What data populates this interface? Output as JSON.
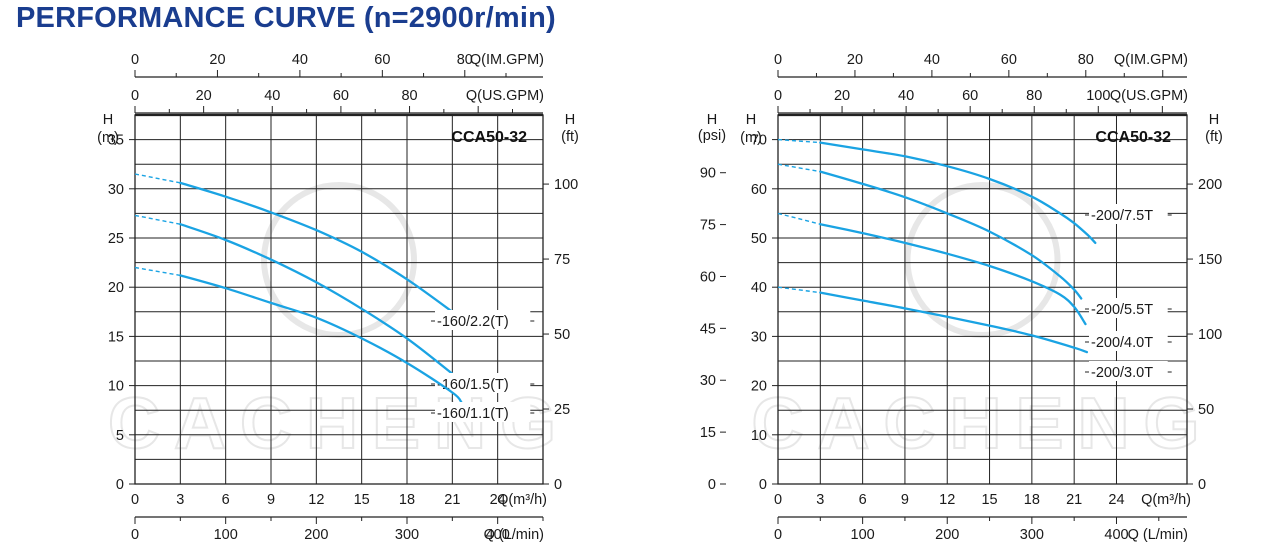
{
  "title": "PERFORMANCE CURVE (n=2900r/min)",
  "colors": {
    "title": "#1a3d8f",
    "curve": "#1aa3e3",
    "grid": "#222222",
    "watermark": "#e7e7e7"
  },
  "watermark_text": "CACHENG",
  "chart_data": [
    {
      "type": "line",
      "model": "CCA50-32",
      "xlabel": "Q(m³/h)",
      "ylabel_left": "H (m)",
      "ylabel_right": "H (ft)",
      "xlim": [
        0,
        27
      ],
      "ylim": [
        0,
        37.5
      ],
      "x_ticks": [
        0,
        3,
        6,
        9,
        12,
        15,
        18,
        21,
        24
      ],
      "y_ticks": [
        0,
        5,
        10,
        15,
        20,
        25,
        30,
        35
      ],
      "right_axis_ticks": [
        0,
        25,
        50,
        75,
        100
      ],
      "right_axis_factor": 0.3048,
      "secondary_axes": [
        {
          "label": "Q(US.GPM)",
          "ticks": [
            0,
            20,
            40,
            60,
            80
          ],
          "factor": 0.2271
        },
        {
          "label": "Q(IM.GPM)",
          "ticks": [
            0,
            20,
            40,
            60,
            80
          ],
          "factor": 0.2728
        },
        {
          "label": "Q (L/min)",
          "ticks": [
            0,
            100,
            200,
            300,
            400
          ],
          "factor": 0.06
        }
      ],
      "grid": true,
      "series": [
        {
          "name": "-160/2.2(T)",
          "x": [
            0,
            3,
            6,
            9,
            12,
            15,
            18,
            21,
            21.6
          ],
          "y": [
            31.5,
            30.6,
            29.2,
            27.6,
            25.8,
            23.6,
            20.8,
            17.5,
            16.8
          ]
        },
        {
          "name": "-160/1.5(T)",
          "x": [
            0,
            3,
            6,
            9,
            12,
            15,
            18,
            21,
            21.9
          ],
          "y": [
            27.3,
            26.4,
            24.8,
            22.8,
            20.5,
            17.8,
            14.8,
            11.2,
            10.0
          ]
        },
        {
          "name": "-160/1.1(T)",
          "x": [
            0,
            3,
            6,
            9,
            12,
            15,
            18,
            21,
            21.6
          ],
          "y": [
            22.0,
            21.2,
            19.9,
            18.4,
            16.9,
            14.8,
            12.3,
            9.3,
            8.3
          ]
        }
      ]
    },
    {
      "type": "line",
      "model": "CCA50-32",
      "xlabel": "Q(m³/h)",
      "ylabel_psi": "H (psi)",
      "ylabel_left": "H (m)",
      "ylabel_right": "H (ft)",
      "xlim": [
        0,
        29
      ],
      "ylim": [
        0,
        75
      ],
      "x_ticks": [
        0,
        3,
        6,
        9,
        12,
        15,
        18,
        21,
        24
      ],
      "y_ticks": [
        0,
        10,
        20,
        30,
        40,
        50,
        60,
        70
      ],
      "psi_ticks": [
        0,
        15,
        30,
        45,
        60,
        75,
        90
      ],
      "psi_factor": 0.703,
      "right_axis_ticks": [
        0,
        50,
        100,
        150,
        200
      ],
      "right_axis_factor": 0.3048,
      "secondary_axes": [
        {
          "label": "Q(US.GPM)",
          "ticks": [
            0,
            20,
            40,
            60,
            80,
            100
          ],
          "factor": 0.2271
        },
        {
          "label": "Q(IM.GPM)",
          "ticks": [
            0,
            20,
            40,
            60,
            80
          ],
          "factor": 0.2728
        },
        {
          "label": "Q (L/min)",
          "ticks": [
            0,
            100,
            200,
            300,
            400
          ],
          "factor": 0.06
        }
      ],
      "grid": true,
      "series": [
        {
          "name": "-200/7.5T",
          "x": [
            0,
            3,
            6,
            9,
            12,
            15,
            18,
            20,
            21,
            22,
            22.5
          ],
          "y": [
            70.0,
            69.4,
            68.0,
            66.6,
            64.6,
            62.0,
            58.4,
            55.0,
            53.0,
            50.5,
            49.0
          ]
        },
        {
          "name": "-200/5.5T",
          "x": [
            0,
            3,
            6,
            9,
            12,
            15,
            18,
            20,
            21,
            21.5
          ],
          "y": [
            65.0,
            63.5,
            61.0,
            58.3,
            55.0,
            51.3,
            46.5,
            42.2,
            39.5,
            37.7
          ]
        },
        {
          "name": "-200/4.0T",
          "x": [
            0,
            3,
            6,
            9,
            12,
            15,
            18,
            20,
            21,
            21.8
          ],
          "y": [
            55.0,
            52.8,
            51.0,
            49.0,
            46.8,
            44.3,
            41.2,
            38.5,
            36.0,
            32.5
          ]
        },
        {
          "name": "-200/3.0T",
          "x": [
            0,
            3,
            6,
            9,
            12,
            15,
            18,
            21,
            21.9
          ],
          "y": [
            40.0,
            38.9,
            37.3,
            35.7,
            34.0,
            32.2,
            30.2,
            27.7,
            26.8
          ]
        }
      ]
    }
  ]
}
